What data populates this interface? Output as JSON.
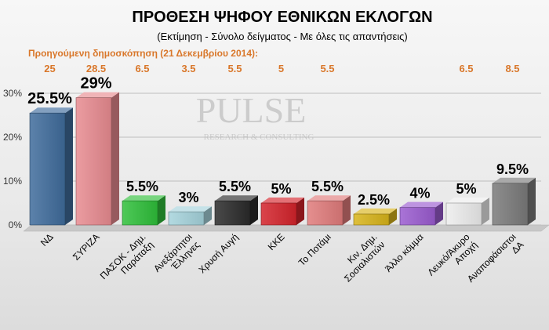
{
  "chart_data": {
    "type": "bar",
    "title": "ΠΡΟΘΕΣΗ ΨΗΦΟΥ ΕΘΝΙΚΩΝ ΕΚΛΟΓΩΝ",
    "subtitle": "(Εκτίμηση - Σύνολο δείγματος - Με όλες τις απαντήσεις)",
    "previous_label": "Προηγούμενη δημοσκόπηση  (21 Δεκεμβρίου 2014):",
    "watermark": "PULSE",
    "watermark_sub": "RESEARCH & CONSULTING",
    "categories": [
      "ΝΔ",
      "ΣΥΡΙΖΑ",
      "ΠΑΣΟΚ - Δημ. Παράταξη",
      "Ανεξάρτητοι Έλληνες",
      "Χρυσή Αυγή",
      "ΚΚΕ",
      "Το Ποτάμι",
      "Κιν. Δημ. Σοσιαλιστών",
      "Άλλο κόμμα",
      "Λευκό/Άκυρο Αποχή",
      "Αναποφάσιστοι ΔΑ"
    ],
    "category_lines": [
      [
        "ΝΔ"
      ],
      [
        "ΣΥΡΙΖΑ"
      ],
      [
        "ΠΑΣΟΚ - Δημ.",
        "Παράταξη"
      ],
      [
        "Ανεξάρτητοι",
        "Έλληνες"
      ],
      [
        "Χρυσή Αυγή"
      ],
      [
        "ΚΚΕ"
      ],
      [
        "Το Ποτάμι"
      ],
      [
        "Κιν. Δημ.",
        "Σοσιαλιστών"
      ],
      [
        "Άλλο κόμμα"
      ],
      [
        "Λευκό/Άκυρο",
        "Αποχή"
      ],
      [
        "Αναποφάσιστοι",
        "ΔΑ"
      ]
    ],
    "values": [
      25.5,
      29,
      5.5,
      3,
      5.5,
      5,
      5.5,
      2.5,
      4,
      5,
      9.5
    ],
    "value_labels": [
      "25.5%",
      "29%",
      "5.5%",
      "3%",
      "5.5%",
      "5%",
      "5.5%",
      "2.5%",
      "4%",
      "5%",
      "9.5%"
    ],
    "previous_values": [
      "25",
      "28.5",
      "6.5",
      "3.5",
      "5.5",
      "5",
      "5.5",
      "",
      "",
      "6.5",
      "8.5"
    ],
    "colors": [
      "#3f6c9c",
      "#e88b90",
      "#2fbf3a",
      "#a6d3dc",
      "#2a2a2a",
      "#d4232b",
      "#e07b7b",
      "#d8b41a",
      "#9a5bd0",
      "#ededed",
      "#7a7a7a"
    ],
    "yticks": [
      "0%",
      "10%",
      "20%",
      "30%"
    ],
    "ylim": [
      0,
      30
    ],
    "title_color": "#000000",
    "previous_color": "#d9772a"
  }
}
